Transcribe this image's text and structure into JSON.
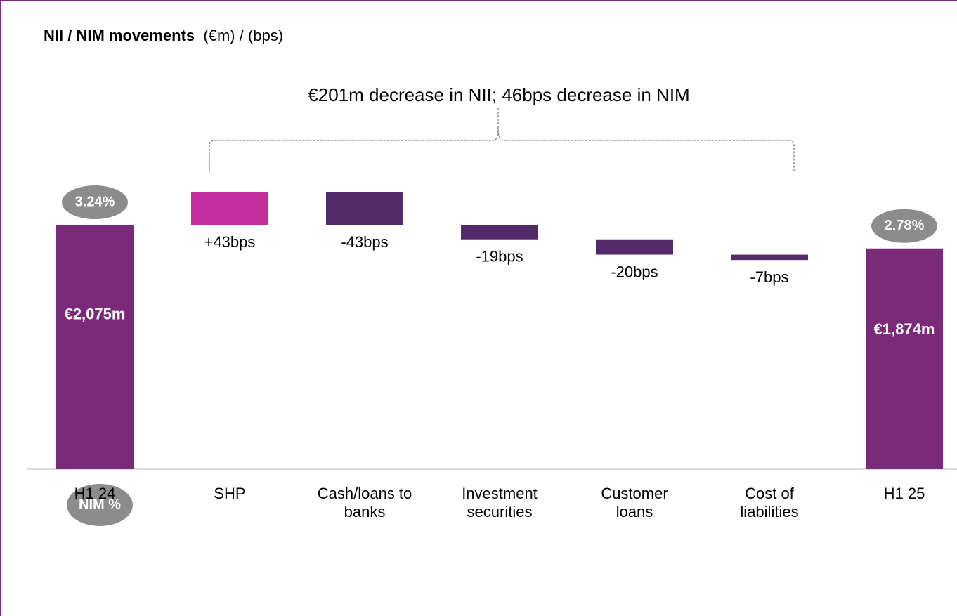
{
  "chart_data": {
    "type": "waterfall",
    "title": "NII / NIM movements",
    "title_units": "(€m) / (bps)",
    "annotation": "€201m decrease in NII; 46bps decrease in NIM",
    "categories": [
      "H1 24",
      "SHP",
      "Cash/loans to banks",
      "Investment securities",
      "Customer loans",
      "Cost of liabilities",
      "H1 25"
    ],
    "series": [
      {
        "color": "#7b2a7a",
        "values": [
          2075,
          null,
          null,
          null,
          null,
          null,
          1874
        ],
        "value_labels": [
          "€2,075m",
          null,
          null,
          null,
          null,
          null,
          "€1,874m"
        ]
      },
      {
        "name": "NIM %",
        "color": "#8c8c8c",
        "values": [
          3.24,
          null,
          null,
          null,
          null,
          null,
          2.78
        ],
        "value_labels": [
          "3.24%",
          null,
          null,
          null,
          null,
          null,
          "2.78%"
        ]
      },
      {
        "color": "#522a6a",
        "increase_color": "#c42e9e",
        "axis": "y2",
        "values": [
          null,
          43,
          -43,
          -19,
          -20,
          -7,
          null
        ],
        "value_labels": [
          null,
          "+43bps",
          "-43bps",
          "-19bps",
          "-20bps",
          "-7bps",
          null
        ]
      }
    ],
    "ylim": [
      0,
      2600
    ],
    "y2lim": [
      0,
      400
    ]
  }
}
